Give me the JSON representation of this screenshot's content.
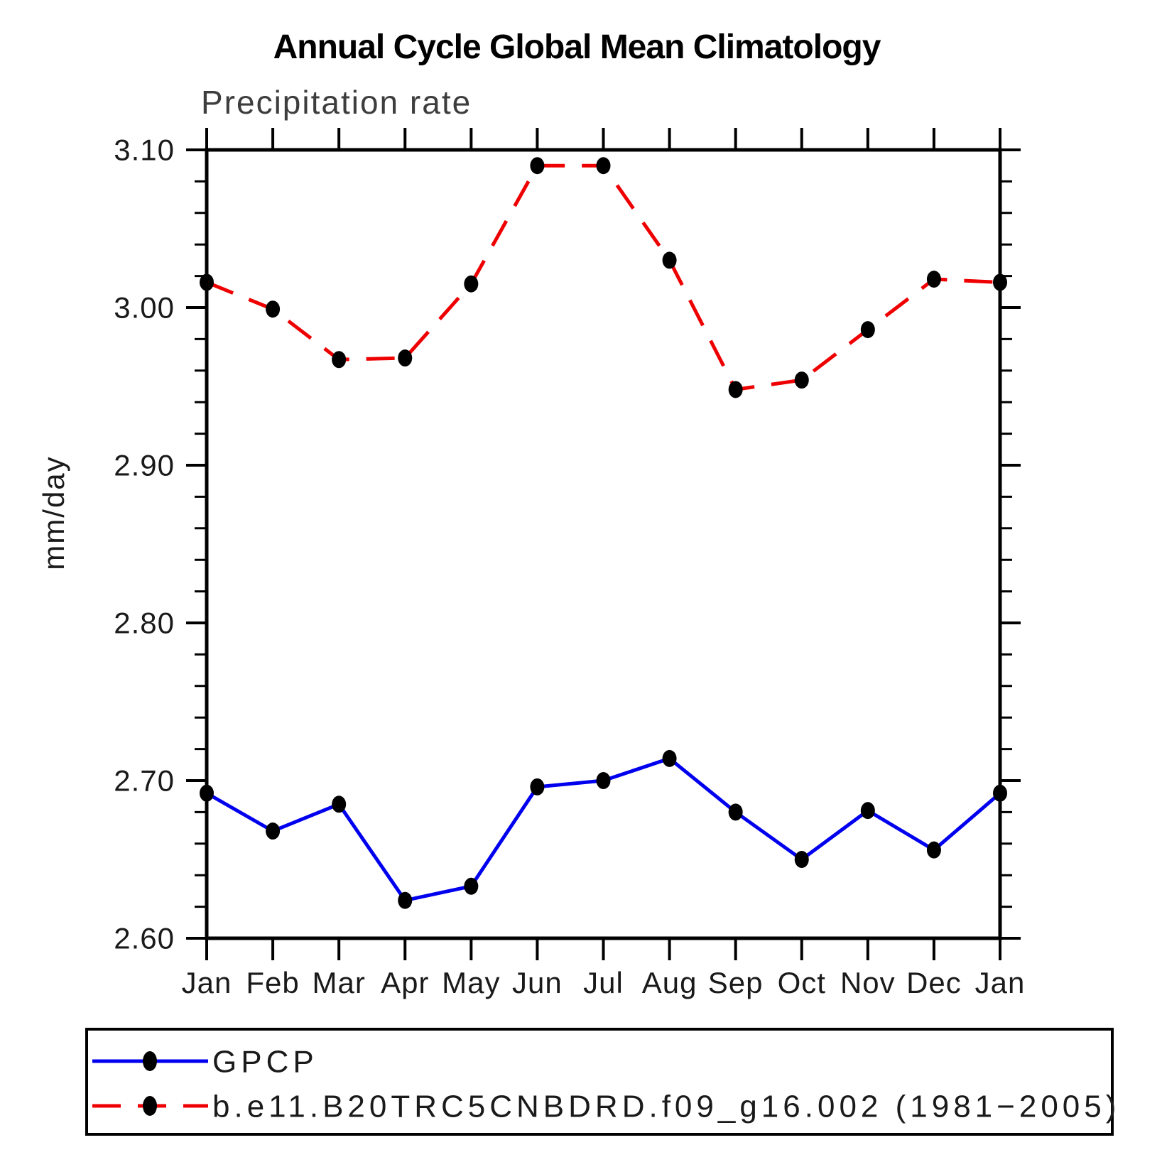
{
  "header": {
    "title": "Annual Cycle Global Mean Climatology",
    "subtitle": "Precipitation rate"
  },
  "chart_data": {
    "type": "line",
    "title": "Annual Cycle Global Mean Climatology",
    "subtitle": "Precipitation rate",
    "ylabel": "mm/day",
    "xlabel": "",
    "categories": [
      "Jan",
      "Feb",
      "Mar",
      "Apr",
      "May",
      "Jun",
      "Jul",
      "Aug",
      "Sep",
      "Oct",
      "Nov",
      "Dec",
      "Jan"
    ],
    "series": [
      {
        "name": "GPCP",
        "color": "#0000ee",
        "line_style": "solid",
        "marker": "filled-circle",
        "marker_color": "#000000",
        "values": [
          2.692,
          2.668,
          2.685,
          2.624,
          2.633,
          2.696,
          2.7,
          2.714,
          2.68,
          2.65,
          2.681,
          2.656,
          2.692
        ]
      },
      {
        "name": "b.e11.B20TRC5CNBDRD.f09_g16.002 (1981−2005)",
        "color": "#ee0000",
        "line_style": "dashed",
        "marker": "filled-circle",
        "marker_color": "#000000",
        "values": [
          3.016,
          2.999,
          2.967,
          2.968,
          3.015,
          3.09,
          3.09,
          3.03,
          2.948,
          2.954,
          2.986,
          3.018,
          3.016
        ]
      }
    ],
    "ylim": [
      2.6,
      3.1
    ],
    "y_major_step": 0.1,
    "y_minor_step": 0.02,
    "y_tick_labels": [
      "3.10",
      "3.00",
      "2.90",
      "2.80",
      "2.70",
      "2.60"
    ],
    "grid": false,
    "ticks": "outward-all-sides",
    "legend_position": "bottom-left-box"
  },
  "legend": {
    "entries": [
      {
        "label": "GPCP",
        "color": "#0000ee",
        "style": "solid"
      },
      {
        "label": "b.e11.B20TRC5CNBDRD.f09_g16.002 (1981−2005)",
        "color": "#ee0000",
        "style": "dashed"
      }
    ]
  },
  "colors": {
    "gpcp_line": "#0000ee",
    "model_line": "#ee0000",
    "marker": "#000000",
    "axis": "#000000",
    "background": "#ffffff"
  }
}
